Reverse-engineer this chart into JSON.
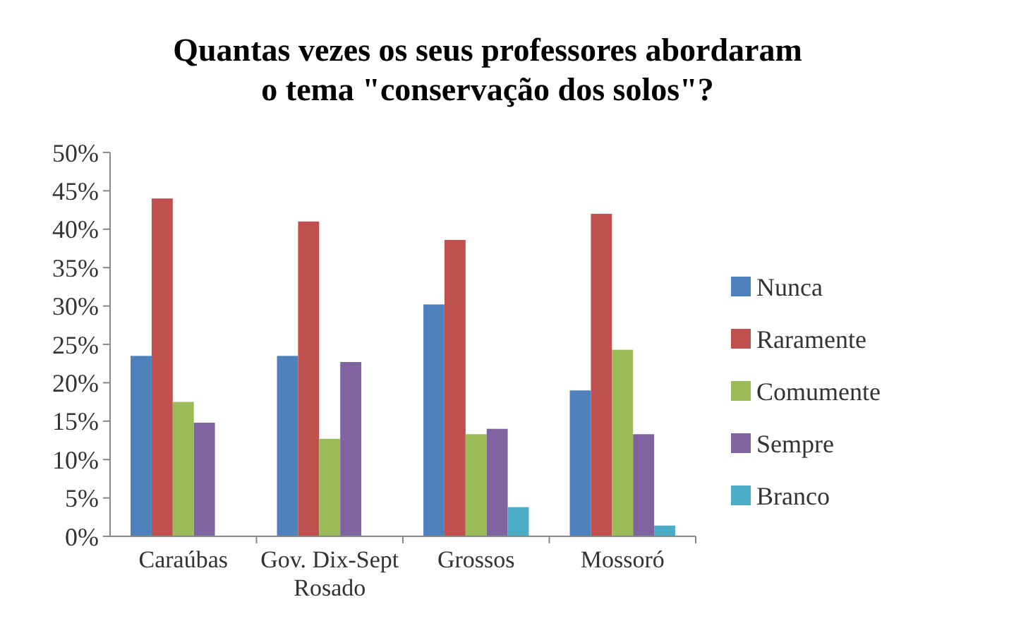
{
  "chart_data": {
    "type": "bar",
    "title": "Quantas vezes os seus professores abordaram o tema \"conservação dos solos\"?",
    "categories": [
      "Caraúbas",
      "Gov. Dix-Sept Rosado",
      "Grossos",
      "Mossoró"
    ],
    "series": [
      {
        "name": "Nunca",
        "color": "#4f81bd",
        "values": [
          23.5,
          23.5,
          30.2,
          19
        ]
      },
      {
        "name": "Raramente",
        "color": "#c0504d",
        "values": [
          44,
          41,
          38.6,
          42
        ]
      },
      {
        "name": "Comumente",
        "color": "#9bbb59",
        "values": [
          17.5,
          12.7,
          13.3,
          24.3
        ]
      },
      {
        "name": "Sempre",
        "color": "#8064a2",
        "values": [
          14.8,
          22.7,
          14,
          13.3
        ]
      },
      {
        "name": "Branco",
        "color": "#4bacc6",
        "values": [
          0,
          0,
          3.8,
          1.4
        ]
      }
    ],
    "ylim": [
      0,
      50
    ],
    "yticks": [
      {
        "value": 0,
        "label": "0%"
      },
      {
        "value": 5,
        "label": "5%"
      },
      {
        "value": 10,
        "label": "10%"
      },
      {
        "value": 15,
        "label": "15%"
      },
      {
        "value": 20,
        "label": "20%"
      },
      {
        "value": 25,
        "label": "25%"
      },
      {
        "value": 30,
        "label": "30%"
      },
      {
        "value": 35,
        "label": "35%"
      },
      {
        "value": 40,
        "label": "40%"
      },
      {
        "value": 45,
        "label": "45%"
      },
      {
        "value": 50,
        "label": "50%"
      }
    ],
    "legend": "right",
    "grid": false
  }
}
